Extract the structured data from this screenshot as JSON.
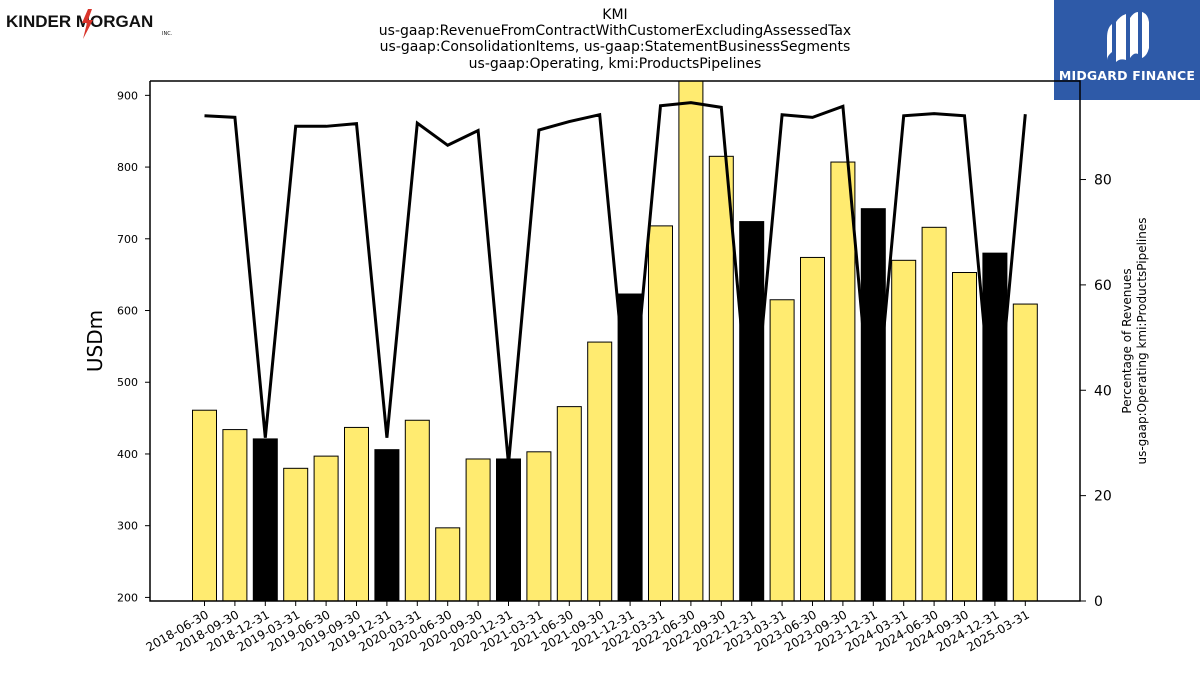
{
  "branding": {
    "left_logo_text": "KINDER MORGAN",
    "left_logo_suffix": "INC.",
    "right_logo_text": "MIDGARD FINANCE",
    "right_logo_color": "#2e5aa8"
  },
  "colors": {
    "bar_normal": "#ffeb70",
    "bar_q4": "#000000",
    "line": "#000000"
  },
  "chart_data": {
    "type": "bar",
    "title_lines": [
      "KMI",
      "us-gaap:RevenueFromContractWithCustomerExcludingAssessedTax",
      "us-gaap:ConsolidationItems, us-gaap:StatementBusinessSegments",
      "us-gaap:Operating, kmi:ProductsPipelines"
    ],
    "ylabel": "USDm",
    "y2label_lines": [
      "Percentage of Revenues",
      "us-gaap:Operating kmi:ProductsPipelines"
    ],
    "ylim": [
      195,
      920
    ],
    "y2lim": [
      0,
      98.7
    ],
    "yticks": [
      200,
      300,
      400,
      500,
      600,
      700,
      800,
      900
    ],
    "y2ticks": [
      0,
      20,
      40,
      60,
      80
    ],
    "categories": [
      "2018-06-30",
      "2018-09-30",
      "2018-12-31",
      "2019-03-31",
      "2019-06-30",
      "2019-09-30",
      "2019-12-31",
      "2020-03-31",
      "2020-06-30",
      "2020-09-30",
      "2020-12-31",
      "2021-03-31",
      "2021-06-30",
      "2021-09-30",
      "2021-12-31",
      "2022-03-31",
      "2022-06-30",
      "2022-09-30",
      "2022-12-31",
      "2023-03-31",
      "2023-06-30",
      "2023-09-30",
      "2023-12-31",
      "2024-03-31",
      "2024-06-30",
      "2024-09-30",
      "2024-12-31",
      "2025-03-31"
    ],
    "values": [
      461,
      434,
      421,
      380,
      397,
      437,
      406,
      447,
      297,
      393,
      393,
      403,
      466,
      556,
      623,
      718,
      925,
      815,
      724,
      615,
      674,
      807,
      742,
      670,
      716,
      653,
      680,
      609
    ],
    "q4_flags": [
      false,
      false,
      true,
      false,
      false,
      false,
      true,
      false,
      false,
      false,
      true,
      false,
      false,
      false,
      true,
      false,
      false,
      false,
      true,
      false,
      false,
      false,
      true,
      false,
      false,
      false,
      true,
      false
    ],
    "series": [
      {
        "values": [
          461,
          434,
          421,
          380,
          397,
          437,
          406,
          447,
          297,
          393,
          393,
          403,
          466,
          556,
          623,
          718,
          925,
          815,
          724,
          615,
          674,
          807,
          742,
          670,
          716,
          653,
          680,
          609
        ]
      },
      {
        "values": [
          92.1,
          91.8,
          31,
          90.1,
          90.1,
          90.6,
          31,
          90.7,
          86.5,
          89.3,
          26,
          89.4,
          91,
          92.3,
          32,
          94,
          94.6,
          93.7,
          30,
          92.3,
          91.8,
          93.9,
          30,
          92.1,
          92.5,
          92.1,
          30,
          92.4
        ]
      }
    ],
    "grid": false
  }
}
